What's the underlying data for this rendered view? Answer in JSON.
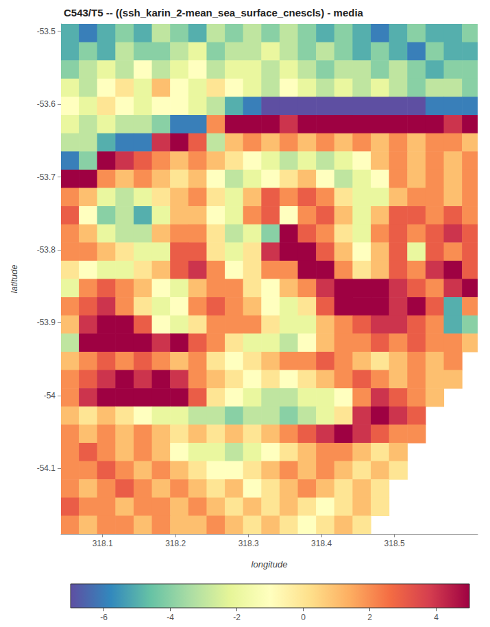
{
  "chart_data": {
    "type": "heatmap",
    "title": "C543/T5 -- ((ssh_karin_2-mean_sea_surface_cnescls) - media",
    "x_label": "longitude",
    "y_label": "latitude",
    "xlim": [
      318.043,
      318.614
    ],
    "xticks": [
      318.1,
      318.2,
      318.3,
      318.4,
      318.5
    ],
    "ylim": [
      -54.19,
      -53.49
    ],
    "yticks": [
      -54.1,
      -54,
      -53.9,
      -53.8,
      -53.7,
      -53.6,
      -53.5
    ],
    "grid": false,
    "lon": [
      318.055,
      318.08,
      318.105,
      318.13,
      318.155,
      318.18,
      318.205,
      318.23,
      318.255,
      318.28,
      318.305,
      318.33,
      318.355,
      318.38,
      318.405,
      318.43,
      318.455,
      318.48,
      318.505,
      318.53,
      318.555,
      318.58,
      318.605
    ],
    "lat": [
      -53.5025,
      -53.5275,
      -53.5525,
      -53.5775,
      -53.6025,
      -53.6275,
      -53.6525,
      -53.6775,
      -53.7025,
      -53.7275,
      -53.7525,
      -53.7775,
      -53.8025,
      -53.8275,
      -53.8525,
      -53.8775,
      -53.9025,
      -53.9275,
      -53.9525,
      -53.9775,
      -54.0025,
      -54.0275,
      -54.0525,
      -54.0775,
      -54.1025,
      -54.1275,
      -54.1525,
      -54.1775
    ],
    "values": [
      [
        -5,
        -6,
        -5,
        -4,
        -5,
        -3,
        -4,
        -5,
        -3,
        -4,
        -3,
        -4,
        -3,
        -4,
        -5,
        -4,
        -5,
        -6,
        -5,
        -4,
        -5,
        -5,
        -4
      ],
      [
        -5,
        -4,
        -5,
        -3,
        -4,
        -4,
        -3,
        -2,
        -4,
        -3,
        -3,
        -2,
        -3,
        -4,
        -3,
        -4,
        -5,
        -4,
        -5,
        -6,
        -4,
        -5,
        -5
      ],
      [
        -4,
        -3,
        -2,
        -3,
        -1,
        -3,
        -2,
        -1,
        -3,
        -2,
        -2,
        -3,
        -2,
        -3,
        -4,
        -3,
        -3,
        -4,
        -3,
        -4,
        -5,
        -4,
        -4
      ],
      [
        -2,
        -3,
        -1,
        0,
        -2,
        1,
        -1,
        -2,
        0,
        -1,
        -2,
        -3,
        -1,
        -2,
        -3,
        -2,
        -3,
        -2,
        -3,
        -4,
        -3,
        -3,
        -4
      ],
      [
        -1,
        -2,
        0,
        -1,
        -2,
        -1,
        -1,
        -2,
        -3,
        -5,
        -6,
        -7,
        -7,
        -7,
        -7,
        -7,
        -7,
        -7,
        -7,
        -7,
        -6,
        -6,
        -6
      ],
      [
        -2,
        -3,
        -2,
        -3,
        -3,
        -4,
        -6,
        -6,
        2,
        5,
        5,
        5,
        4,
        5,
        5,
        5,
        5,
        5,
        5,
        5,
        5,
        4,
        5
      ],
      [
        -3,
        -3,
        -5,
        -6,
        -6,
        4,
        5,
        3,
        -3,
        1,
        2,
        1,
        2,
        1,
        2,
        1,
        2,
        1,
        2,
        1,
        2,
        2,
        1
      ],
      [
        -6,
        -4,
        5,
        4,
        3,
        2,
        1,
        2,
        1,
        0,
        -1,
        -2,
        -3,
        -2,
        -3,
        -2,
        -1,
        1,
        2,
        1,
        2,
        1,
        2
      ],
      [
        5,
        5,
        2,
        1,
        2,
        1,
        0,
        1,
        -1,
        -3,
        -2,
        -1,
        0,
        1,
        -1,
        -3,
        -2,
        -1,
        2,
        1,
        2,
        1,
        2
      ],
      [
        2,
        1,
        -2,
        -3,
        -2,
        0,
        1,
        2,
        0,
        -2,
        1,
        3,
        2,
        3,
        2,
        0,
        -2,
        -2,
        1,
        2,
        2,
        1,
        2
      ],
      [
        3,
        -1,
        -4,
        -3,
        -5,
        -2,
        1,
        1,
        -1,
        -2,
        2,
        3,
        -1,
        2,
        3,
        1,
        -2,
        1,
        3,
        3,
        2,
        3,
        2
      ],
      [
        2,
        1,
        -2,
        -3,
        -3,
        1,
        2,
        2,
        0,
        -3,
        -2,
        -4,
        5,
        3,
        2,
        0,
        -2,
        2,
        3,
        2,
        3,
        4,
        3
      ],
      [
        2,
        2,
        1,
        0,
        -2,
        -2,
        3,
        3,
        0,
        -2,
        0,
        4,
        5,
        5,
        3,
        1,
        -1,
        1,
        3,
        -2,
        3,
        2,
        3
      ],
      [
        0,
        -1,
        -2,
        -2,
        0,
        1,
        3,
        4,
        2,
        -1,
        0,
        2,
        2,
        5,
        5,
        2,
        0,
        1,
        3,
        2,
        4,
        5,
        3
      ],
      [
        -2,
        2,
        3,
        2,
        1,
        -1,
        -2,
        1,
        2,
        2,
        0,
        -1,
        1,
        2,
        4,
        5,
        5,
        5,
        4,
        3,
        2,
        4,
        5
      ],
      [
        2,
        3,
        4,
        2,
        0,
        -2,
        -1,
        2,
        3,
        2,
        1,
        -1,
        -2,
        0,
        3,
        5,
        5,
        5,
        4,
        5,
        3,
        -5,
        2
      ],
      [
        1,
        4,
        5,
        5,
        3,
        -1,
        -2,
        0,
        2,
        2,
        2,
        0,
        -2,
        -2,
        1,
        2,
        3,
        4,
        4,
        3,
        2,
        -5,
        -4
      ],
      [
        -3,
        5,
        5,
        5,
        5,
        4,
        5,
        3,
        2,
        0,
        -2,
        -2,
        -3,
        -1,
        1,
        2,
        2,
        3,
        2,
        3,
        2,
        2,
        1
      ],
      [
        1,
        2,
        3,
        2,
        3,
        2,
        1,
        2,
        0,
        -1,
        0,
        1,
        2,
        2,
        3,
        2,
        1,
        0,
        1,
        2,
        1,
        2,
        null
      ],
      [
        2,
        3,
        4,
        5,
        4,
        5,
        4,
        2,
        1,
        0,
        -1,
        0,
        -1,
        0,
        1,
        2,
        3,
        2,
        1,
        2,
        1,
        1,
        null
      ],
      [
        2,
        4,
        5,
        5,
        5,
        5,
        5,
        3,
        0,
        -1,
        -2,
        -3,
        -3,
        -2,
        -2,
        -1,
        2,
        4,
        3,
        2,
        1,
        null,
        null
      ],
      [
        1,
        0,
        1,
        0,
        -1,
        -2,
        -2,
        -3,
        -3,
        -4,
        -3,
        -3,
        -4,
        -3,
        -2,
        0,
        4,
        5,
        4,
        3,
        null,
        null,
        null
      ],
      [
        2,
        1,
        2,
        1,
        2,
        1,
        0,
        1,
        0,
        1,
        0,
        1,
        2,
        3,
        4,
        5,
        4,
        3,
        2,
        2,
        null,
        null,
        null
      ],
      [
        2,
        3,
        2,
        1,
        2,
        1,
        -1,
        -2,
        -2,
        -3,
        -2,
        -1,
        0,
        1,
        2,
        2,
        1,
        0,
        1,
        null,
        null,
        null,
        null
      ],
      [
        2,
        2,
        3,
        2,
        1,
        2,
        1,
        0,
        -1,
        -1,
        0,
        1,
        2,
        1,
        2,
        1,
        0,
        1,
        0,
        null,
        null,
        null,
        null
      ],
      [
        2,
        1,
        2,
        3,
        2,
        1,
        2,
        1,
        0,
        1,
        -1,
        0,
        1,
        2,
        1,
        0,
        1,
        0,
        null,
        null,
        null,
        null,
        null
      ],
      [
        3,
        2,
        2,
        1,
        2,
        2,
        1,
        2,
        1,
        0,
        1,
        0,
        1,
        0,
        -1,
        0,
        1,
        0,
        null,
        null,
        null,
        null,
        null
      ],
      [
        2,
        1,
        2,
        2,
        1,
        2,
        1,
        1,
        2,
        1,
        0,
        1,
        0,
        -1,
        0,
        1,
        0,
        null,
        null,
        null,
        null,
        null,
        null
      ]
    ],
    "colorbar": {
      "range": [
        -7,
        5
      ],
      "ticks": [
        -6,
        -4,
        -2,
        0,
        2,
        4
      ]
    }
  }
}
